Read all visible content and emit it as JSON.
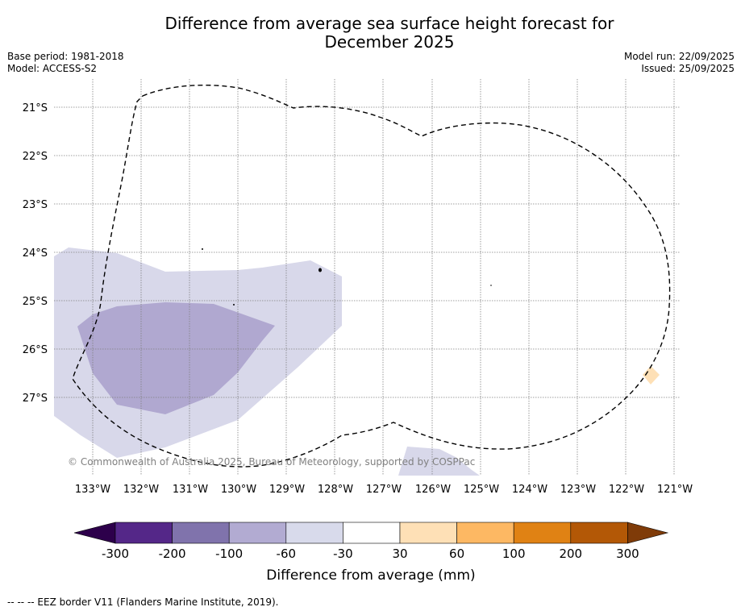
{
  "header": {
    "title_line1": "Difference from average sea surface height forecast for",
    "title_line2": "December 2025",
    "base_period": "Base period: 1981-2018",
    "model": "Model: ACCESS-S2",
    "model_run": "Model run: 22/09/2025",
    "issued": "Issued: 25/09/2025"
  },
  "map": {
    "latitude_labels": [
      "21°S",
      "22°S",
      "23°S",
      "24°S",
      "25°S",
      "26°S",
      "27°S"
    ],
    "longitude_labels": [
      "133°W",
      "132°W",
      "131°W",
      "130°W",
      "129°W",
      "128°W",
      "127°W",
      "126°W",
      "125°W",
      "124°W",
      "123°W",
      "122°W",
      "121°W"
    ],
    "copyright": "© Commonwealth of Australia 2025, Bureau of Meteorology, supported by COSPPac",
    "colors": {
      "band_30_60": "#d8d8ea",
      "band_60_100": "#b0a8d0",
      "positive_30_60": "#fee0b6",
      "grid": "#808080",
      "eez_border": "#000000"
    }
  },
  "colorbar": {
    "title": "Difference from average (mm)",
    "tick_labels": [
      "-300",
      "-200",
      "-100",
      "-60",
      "-30",
      "30",
      "60",
      "100",
      "200",
      "300"
    ],
    "colors": [
      "#2d004b",
      "#542788",
      "#8073ac",
      "#b2abd2",
      "#d8daeb",
      "#ffffff",
      "#fee0b6",
      "#fdb863",
      "#e08214",
      "#b35806",
      "#7f3b08"
    ]
  },
  "footnote": "-- -- -- EEZ border V11 (Flanders Marine Institute, 2019)."
}
